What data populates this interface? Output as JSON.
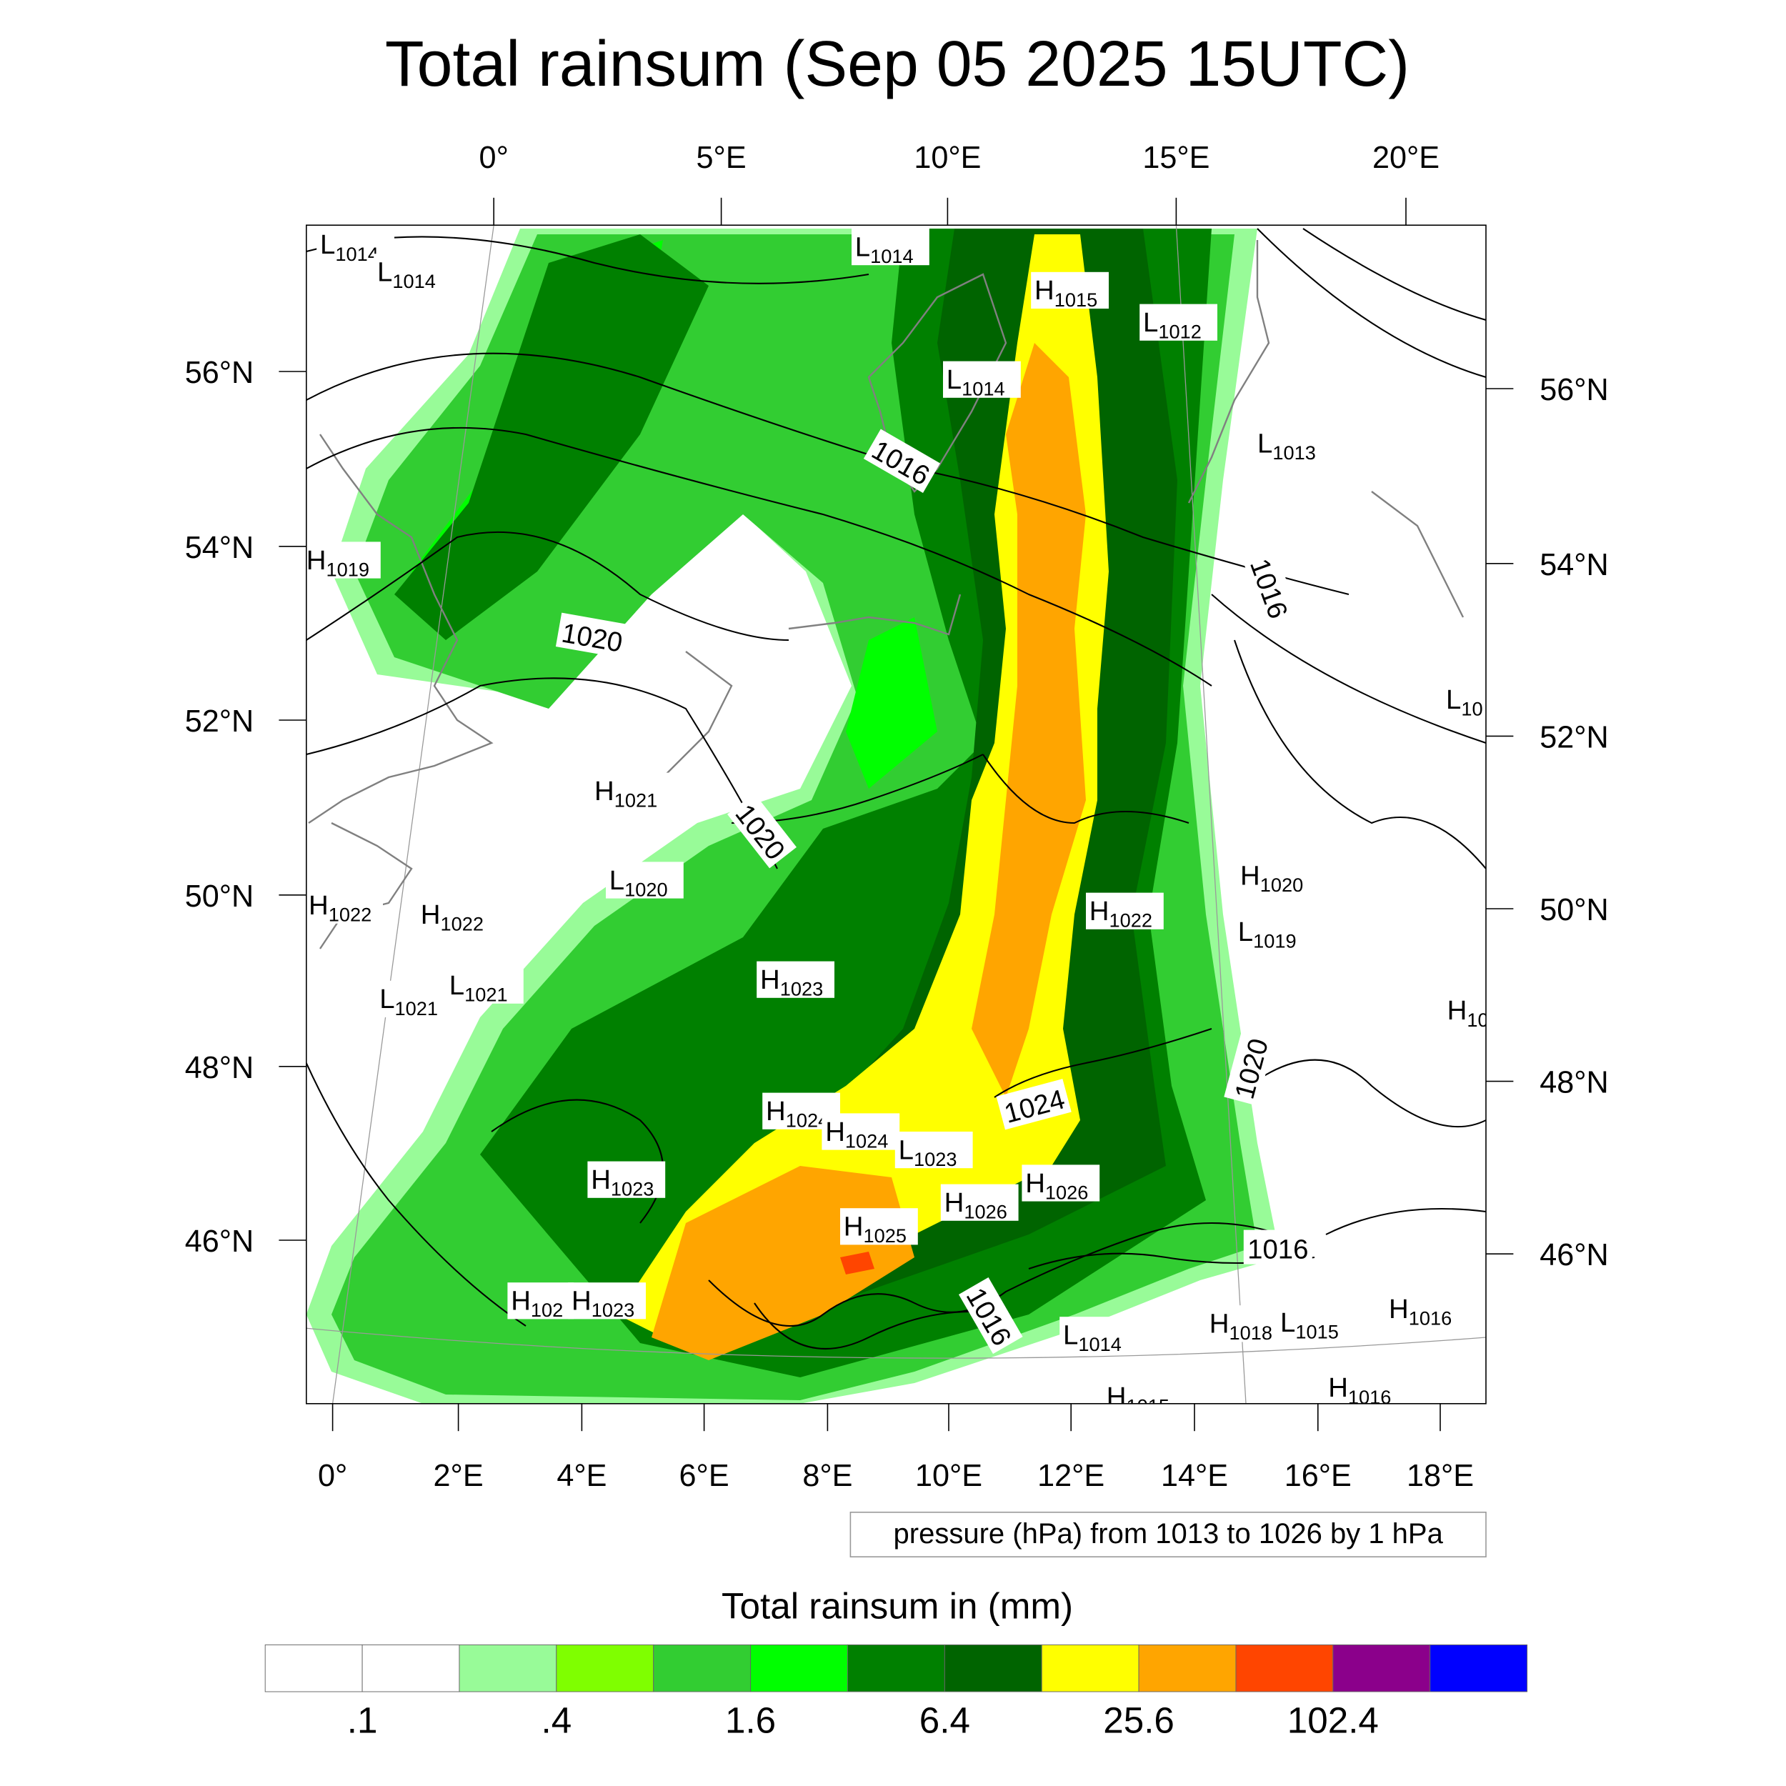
{
  "title": "Total rainsum (Sep 05 2025 15UTC)",
  "axes": {
    "top_lon": [
      "0°",
      "5°E",
      "10°E",
      "15°E",
      "20°E"
    ],
    "bottom_lon": [
      "0°",
      "2°E",
      "4°E",
      "6°E",
      "8°E",
      "10°E",
      "12°E",
      "14°E",
      "16°E",
      "18°E"
    ],
    "left_lat": [
      "56°N",
      "54°N",
      "52°N",
      "50°N",
      "48°N",
      "46°N"
    ],
    "right_lat": [
      "56°N",
      "54°N",
      "52°N",
      "50°N",
      "48°N",
      "46°N"
    ]
  },
  "pressure_info": "pressure (hPa) from 1013 to 1026 by 1 hPa",
  "colorbar": {
    "title": "Total rainsum in (mm)",
    "colors": [
      "#ffffff",
      "#ffffff",
      "#98fb98",
      "#7fff00",
      "#32cd32",
      "#00ff00",
      "#008000",
      "#006400",
      "#ffff00",
      "#ffa500",
      "#ff4500",
      "#8b008b",
      "#0000ff"
    ],
    "labels": [
      ".1",
      ".4",
      "1.6",
      "6.4",
      "25.6",
      "102.4"
    ]
  },
  "pressure_centers": [
    {
      "type": "L",
      "value": "1014"
    },
    {
      "type": "L",
      "value": "1014"
    },
    {
      "type": "L",
      "value": "1014"
    },
    {
      "type": "H",
      "value": "1015"
    },
    {
      "type": "L",
      "value": "1012"
    },
    {
      "type": "L",
      "value": "1014"
    },
    {
      "type": "L",
      "value": "1013"
    },
    {
      "type": "H",
      "value": "1019"
    },
    {
      "type": "L",
      "value": "10"
    },
    {
      "type": "H",
      "value": "1021"
    },
    {
      "type": "L",
      "value": "1020"
    },
    {
      "type": "H",
      "value": "1022"
    },
    {
      "type": "H",
      "value": "1022"
    },
    {
      "type": "H",
      "value": "1022"
    },
    {
      "type": "H",
      "value": "1020"
    },
    {
      "type": "L",
      "value": "1019"
    },
    {
      "type": "L",
      "value": "1021"
    },
    {
      "type": "L",
      "value": "1021"
    },
    {
      "type": "H",
      "value": "1023"
    },
    {
      "type": "H",
      "value": "10"
    },
    {
      "type": "H",
      "value": "1024"
    },
    {
      "type": "H",
      "value": "1024"
    },
    {
      "type": "L",
      "value": "1023"
    },
    {
      "type": "H",
      "value": "1023"
    },
    {
      "type": "H",
      "value": "1026"
    },
    {
      "type": "H",
      "value": "1026"
    },
    {
      "type": "H",
      "value": "1025"
    },
    {
      "type": "H",
      "value": "102"
    },
    {
      "type": "H",
      "value": "1023"
    },
    {
      "type": "L",
      "value": "1014"
    },
    {
      "type": "H",
      "value": "1018"
    },
    {
      "type": "L",
      "value": "1015"
    },
    {
      "type": "H",
      "value": "1016"
    },
    {
      "type": "H",
      "value": "1016"
    },
    {
      "type": "H",
      "value": "1015"
    }
  ],
  "isobar_labels": [
    "1016",
    "1020",
    "1020",
    "1016",
    "1020",
    "1024",
    "1016",
    "1016"
  ]
}
